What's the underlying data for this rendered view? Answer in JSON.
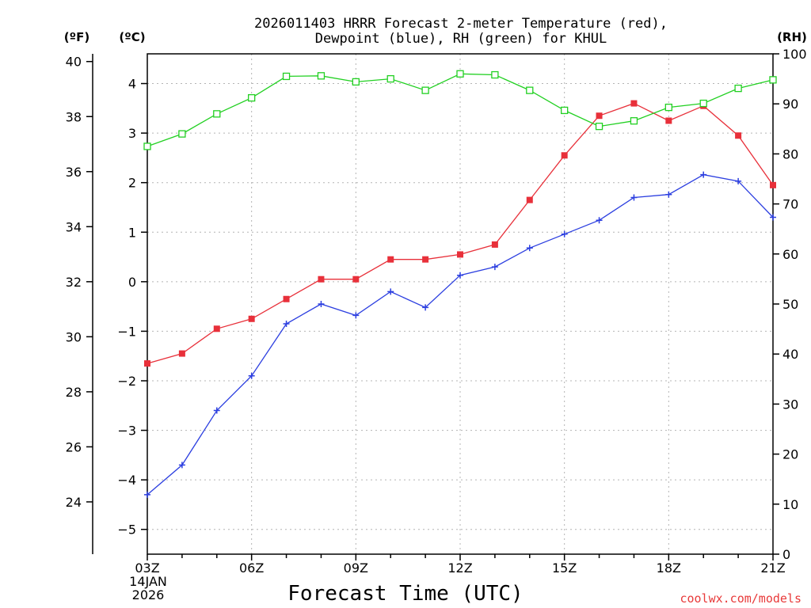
{
  "chart_data": {
    "type": "line",
    "title_line1": "2026011403 HRRR Forecast 2-meter Temperature (red),",
    "title_line2": "Dewpoint (blue), RH (green) for KHUL",
    "xlabel": "Forecast Time (UTC)",
    "credit": "coolwx.com/models",
    "date_day": "14JAN",
    "date_year": "2026",
    "unit_f": "(ºF)",
    "unit_c": "(ºC)",
    "unit_rh": "(RH)",
    "x_hours": [
      3,
      4,
      5,
      6,
      7,
      8,
      9,
      10,
      11,
      12,
      13,
      14,
      15,
      16,
      17,
      18,
      19,
      20,
      21
    ],
    "x_ticks": [
      {
        "hour": 3,
        "label": "03Z"
      },
      {
        "hour": 6,
        "label": "06Z"
      },
      {
        "hour": 9,
        "label": "09Z"
      },
      {
        "hour": 12,
        "label": "12Z"
      },
      {
        "hour": 15,
        "label": "15Z"
      },
      {
        "hour": 18,
        "label": "18Z"
      },
      {
        "hour": 21,
        "label": "21Z"
      }
    ],
    "xlim": [
      3,
      21
    ],
    "celsius_axis": {
      "ylim": [
        -5.5,
        4.6
      ],
      "ticks": [
        -5,
        -4,
        -3,
        -2,
        -1,
        0,
        1,
        2,
        3,
        4
      ],
      "labels": [
        "−5",
        "−4",
        "−3",
        "−2",
        "−1",
        "0",
        "1",
        "2",
        "3",
        "4"
      ]
    },
    "fahrenheit_axis": {
      "ticks": [
        24,
        26,
        28,
        30,
        32,
        34,
        36,
        38,
        40
      ],
      "labels": [
        "24",
        "26",
        "28",
        "30",
        "32",
        "34",
        "36",
        "38",
        "40"
      ]
    },
    "rh_axis": {
      "ylim": [
        0,
        100
      ],
      "ticks": [
        0,
        10,
        20,
        30,
        40,
        50,
        60,
        70,
        80,
        90,
        100
      ],
      "labels": [
        "0",
        "10",
        "20",
        "30",
        "40",
        "50",
        "60",
        "70",
        "80",
        "90",
        "100"
      ]
    },
    "series": [
      {
        "name": "Temperature",
        "units": "C",
        "color": "#e8303a",
        "marker": "filled-square",
        "values": [
          -1.65,
          -1.45,
          -0.95,
          -0.75,
          -0.35,
          0.05,
          0.05,
          0.45,
          0.45,
          0.55,
          0.75,
          1.65,
          2.55,
          3.35,
          3.6,
          3.25,
          3.55,
          2.95,
          1.95
        ]
      },
      {
        "name": "Dewpoint",
        "units": "C",
        "color": "#2c3fe0",
        "marker": "plus",
        "values": [
          -4.3,
          -3.7,
          -2.6,
          -1.9,
          -0.85,
          -0.45,
          -0.68,
          -0.2,
          -0.52,
          0.13,
          0.3,
          0.68,
          0.96,
          1.24,
          1.7,
          1.76,
          2.16,
          2.03,
          1.3
        ]
      },
      {
        "name": "RH",
        "units": "%",
        "color": "#22d022",
        "marker": "open-square",
        "values": [
          81.5,
          84.0,
          88.0,
          91.2,
          95.5,
          95.6,
          94.4,
          95.0,
          92.7,
          96.0,
          95.8,
          92.7,
          88.7,
          85.5,
          86.6,
          89.3,
          90.1,
          93.1,
          94.8
        ]
      }
    ]
  }
}
